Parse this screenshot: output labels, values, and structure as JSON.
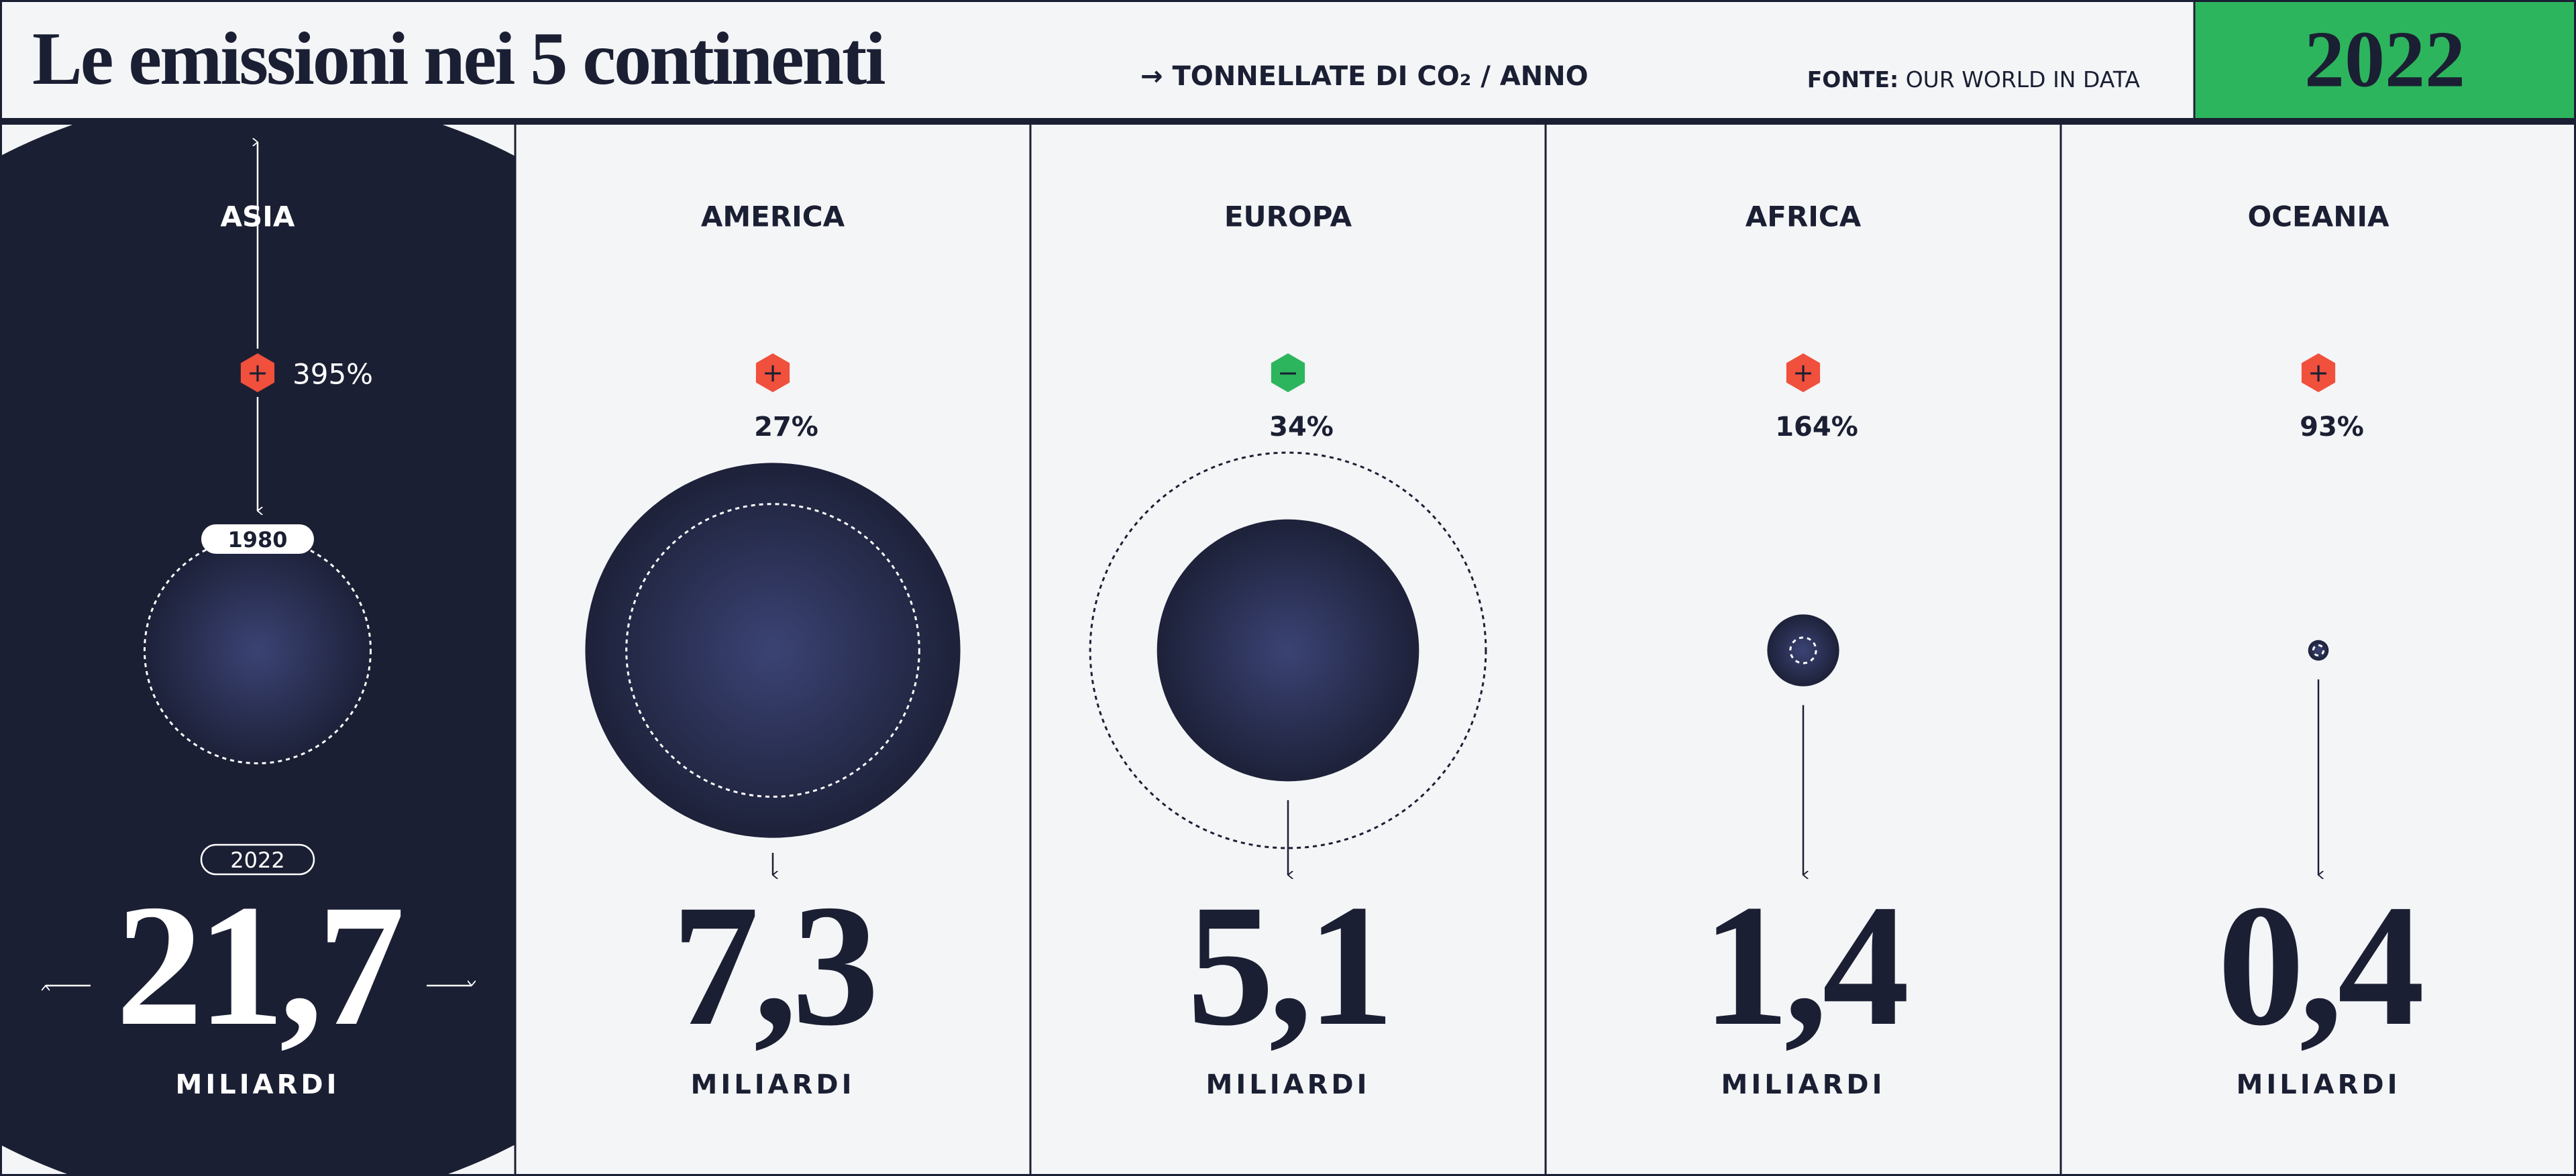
{
  "header": {
    "title": "Le emissioni nei 5 continenti",
    "unit": "→ TONNELLATE DI CO₂ / ANNO",
    "source_label": "FONTE:",
    "source": "OUR WORLD IN DATA",
    "year": "2022"
  },
  "labels": {
    "from": "1980",
    "to": "2022",
    "unit": "MILIARDI"
  },
  "continents": [
    {
      "name": "ASIA",
      "sign": "+",
      "color": "#f0503c",
      "change": "395%",
      "value": 21.7,
      "value_label": "21,7",
      "value_1980": 4.4
    },
    {
      "name": "AMERICA",
      "sign": "+",
      "color": "#f0503c",
      "change": "27%",
      "value": 7.3,
      "value_label": "7,3",
      "value_1980": 5.7
    },
    {
      "name": "EUROPA",
      "sign": "−",
      "color": "#2db55d",
      "change": "34%",
      "value": 5.1,
      "value_label": "5,1",
      "value_1980": 7.7
    },
    {
      "name": "AFRICA",
      "sign": "+",
      "color": "#f0503c",
      "change": "164%",
      "value": 1.4,
      "value_label": "1,4",
      "value_1980": 0.5
    },
    {
      "name": "OCEANIA",
      "sign": "+",
      "color": "#f0503c",
      "change": "93%",
      "value": 0.4,
      "value_label": "0,4",
      "value_1980": 0.2
    }
  ]
}
